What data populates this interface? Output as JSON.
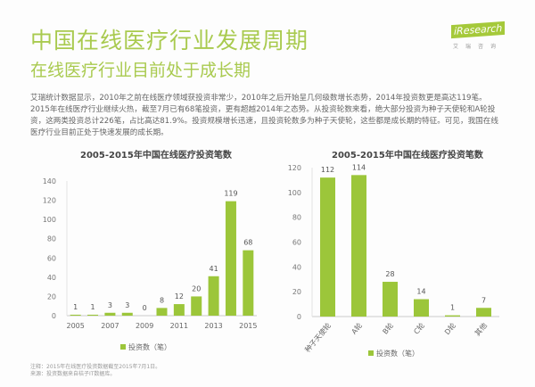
{
  "header": {
    "title": "中国在线医疗行业发展周期",
    "subtitle": "在线医疗行业目前处于成长期",
    "logo": "iResearch",
    "logo_sub": "艾瑞咨询"
  },
  "body_text": "艾瑞统计数据显示，2010年之前在线医疗领域获投资非常少，2010年之后开始呈几何级数增长态势，2014年投资数更是高达119笔。2015年在线医疗行业继续火热，截至7月已有68笔投资，更有超越2014年之态势。从投资轮数来看，绝大部分投资为种子天使轮和A轮投资，这两类投资总计226笔，占比高达81.9%。投资规模增长迅速，且投资轮数多为种子天使轮，这些都是成长期的特征。可见，我国在线医疗行业目前正处于快速发展的成长期。",
  "footnote": [
    "注释：2015年在线医疗投资数据截至2015年7月1日。",
    "来源：投资数据来自桔子IT数据库。"
  ],
  "colors": {
    "bar": "#9cc63a",
    "title": "#a9ca4f"
  },
  "chart_data": [
    {
      "type": "bar",
      "title": "2005-2015年中国在线医疗投资笔数",
      "categories": [
        "2005",
        "2006",
        "2007",
        "2008",
        "2009",
        "2010",
        "2011",
        "2012",
        "2013",
        "2014",
        "2015"
      ],
      "tick_labels": [
        "2005",
        "",
        "2007",
        "",
        "2009",
        "",
        "2011",
        "",
        "2013",
        "",
        "2015"
      ],
      "values": [
        1,
        1,
        3,
        3,
        0,
        8,
        12,
        20,
        41,
        119,
        68
      ],
      "ylim": [
        0,
        140
      ],
      "yticks": [
        0,
        20,
        40,
        60,
        80,
        100,
        120,
        140
      ],
      "legend": "投资数（笔）",
      "legend_position": "bottom",
      "grid": false
    },
    {
      "type": "bar",
      "title": "2005-2015年中国在线医疗投资笔数",
      "categories": [
        "种子天使轮",
        "A轮",
        "B轮",
        "C轮",
        "D轮",
        "其他"
      ],
      "values": [
        112,
        114,
        28,
        14,
        1,
        7
      ],
      "ylim": [
        0,
        120
      ],
      "yticks": [
        0,
        20,
        40,
        60,
        80,
        100,
        120
      ],
      "legend": "投资数（笔）",
      "legend_position": "bottom",
      "grid": false
    }
  ]
}
